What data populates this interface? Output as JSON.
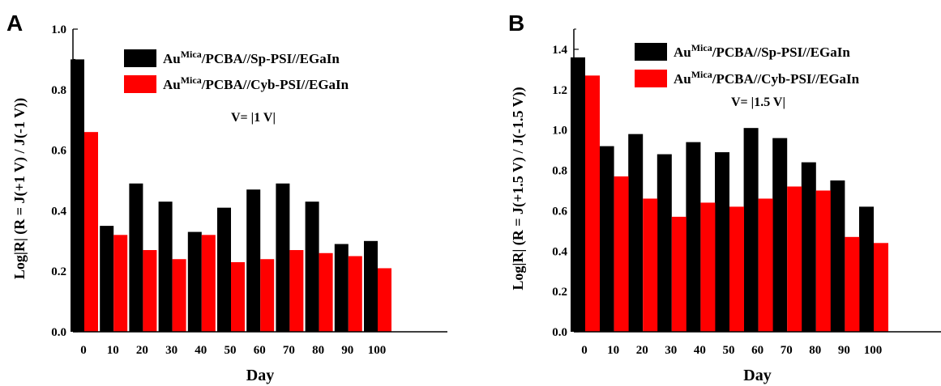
{
  "chart_data": [
    {
      "type": "bar",
      "panel_label": "A",
      "categories": [
        "0",
        "10",
        "20",
        "30",
        "40",
        "50",
        "60",
        "70",
        "80",
        "90",
        "100"
      ],
      "series": [
        {
          "name_base": "Au",
          "name_sup": "Mica",
          "name_rest": "/PCBA//Sp-PSI//EGaIn",
          "color": "#000000",
          "values": [
            0.9,
            0.35,
            0.49,
            0.43,
            0.33,
            0.41,
            0.47,
            0.49,
            0.43,
            0.29,
            0.3
          ]
        },
        {
          "name_base": "Au",
          "name_sup": "Mica",
          "name_rest": "/PCBA//Cyb-PSI//EGaIn",
          "color": "#ff0000",
          "values": [
            0.66,
            0.32,
            0.27,
            0.24,
            0.32,
            0.23,
            0.24,
            0.27,
            0.26,
            0.25,
            0.21
          ]
        }
      ],
      "xlabel": "Day",
      "ylabel": "Log|R| (R = J(+1 V) / J(-1 V))",
      "ylim": [
        0.0,
        1.0
      ],
      "yticks": [
        "0.0",
        "0.2",
        "0.4",
        "0.6",
        "0.8",
        "1.0"
      ],
      "annotation": "V= |1 V|",
      "legend_position": "top-right",
      "grid": false
    },
    {
      "type": "bar",
      "panel_label": "B",
      "categories": [
        "0",
        "10",
        "20",
        "30",
        "40",
        "50",
        "60",
        "70",
        "80",
        "90",
        "100"
      ],
      "series": [
        {
          "name_base": "Au",
          "name_sup": "Mica",
          "name_rest": "/PCBA//Sp-PSI//EGaIn",
          "color": "#000000",
          "values": [
            1.36,
            0.92,
            0.98,
            0.88,
            0.94,
            0.89,
            1.01,
            0.96,
            0.84,
            0.75,
            0.62
          ]
        },
        {
          "name_base": "Au",
          "name_sup": "Mica",
          "name_rest": "/PCBA//Cyb-PSI//EGaIn",
          "color": "#ff0000",
          "values": [
            1.27,
            0.77,
            0.66,
            0.57,
            0.64,
            0.62,
            0.66,
            0.72,
            0.7,
            0.47,
            0.44
          ]
        }
      ],
      "xlabel": "Day",
      "ylabel": "Log|R| (R = J(+1.5 V) / J(-1.5 V))",
      "ylim": [
        0.0,
        1.5
      ],
      "yticks": [
        "0.0",
        "0.2",
        "0.4",
        "0.6",
        "0.8",
        "1.0",
        "1.2",
        "1.4"
      ],
      "annotation": "V= |1.5 V|",
      "legend_position": "top-right",
      "grid": false
    }
  ]
}
